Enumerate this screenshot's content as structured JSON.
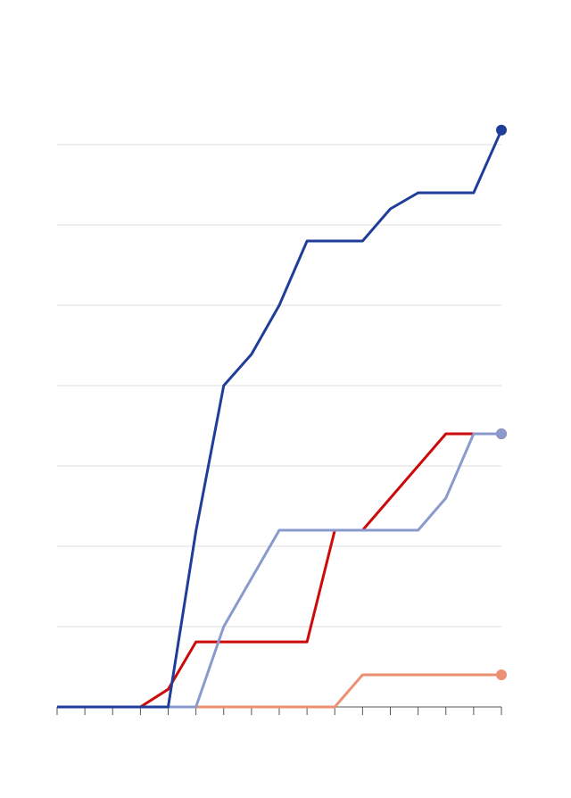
{
  "chart_data": {
    "type": "line",
    "x": [
      0,
      1,
      2,
      3,
      4,
      5,
      6,
      7,
      8,
      9,
      10,
      11,
      12,
      13,
      14,
      15,
      16
    ],
    "xlim": [
      0,
      16
    ],
    "xticks": [
      0,
      1,
      2,
      3,
      4,
      5,
      6,
      7,
      8,
      9,
      10,
      11,
      12,
      13,
      14,
      15,
      16
    ],
    "ylim": [
      0,
      8
    ],
    "yticks": [
      1,
      2,
      3,
      4,
      5,
      6,
      7
    ],
    "grid": true,
    "series": [
      {
        "color": "#ec8f73",
        "values": [
          0,
          0,
          0,
          0,
          0,
          0,
          0,
          0,
          0,
          0,
          0,
          0.4,
          0.4,
          0.4,
          0.4,
          0.4,
          0.4
        ]
      },
      {
        "color": "#cc0a0a",
        "values": [
          0,
          0,
          0,
          0,
          0.22,
          0.81,
          0.81,
          0.81,
          0.81,
          0.81,
          2.2,
          2.2,
          2.6,
          3.0,
          3.4,
          3.4,
          3.4
        ]
      },
      {
        "color": "#8a9acc",
        "values": [
          0,
          0,
          0,
          0,
          0,
          0,
          1.0,
          1.6,
          2.2,
          2.2,
          2.2,
          2.2,
          2.2,
          2.2,
          2.6,
          3.4,
          3.4
        ]
      },
      {
        "color": "#1f3d99",
        "values": [
          0,
          0,
          0,
          0,
          0,
          2.19,
          4.0,
          4.39,
          5.0,
          5.8,
          5.8,
          5.8,
          6.2,
          6.4,
          6.4,
          6.4,
          7.18
        ]
      }
    ]
  }
}
